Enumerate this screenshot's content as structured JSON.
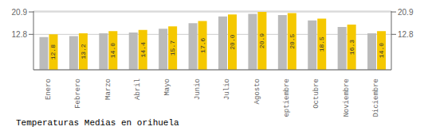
{
  "chart_data": {
    "type": "bar",
    "title": "Temperaturas Medias en orihuela",
    "categories": [
      "Enero",
      "Febrero",
      "Marzo",
      "Abril",
      "Mayo",
      "Junio",
      "Julio",
      "Agosto",
      "Septiembre",
      "Octubre",
      "Noviembre",
      "Diciembre"
    ],
    "series": [
      {
        "color": "#BBBBBB",
        "values": [
          11.8,
          12.2,
          13.2,
          13.5,
          14.8,
          16.8,
          19.3,
          20.2,
          19.8,
          17.8,
          15.5,
          13.2
        ]
      },
      {
        "color": "#F5C800",
        "values": [
          12.8,
          13.2,
          14.0,
          14.4,
          15.7,
          17.6,
          20.0,
          20.9,
          20.5,
          18.5,
          16.3,
          14.0
        ],
        "value_labels": [
          "12.8",
          "13.2",
          "14.0",
          "14.4",
          "15.7",
          "17.6",
          "20.0",
          "20.9",
          "20.5",
          "18.5",
          "16.3",
          "14.0"
        ],
        "data_labels": true
      }
    ],
    "ylim": [
      0,
      21.2
    ],
    "yticks": [
      12.8,
      20.9
    ],
    "y2lim": [
      0,
      21.2
    ],
    "y2ticks": [
      12.8,
      20.9
    ],
    "grid": true
  }
}
